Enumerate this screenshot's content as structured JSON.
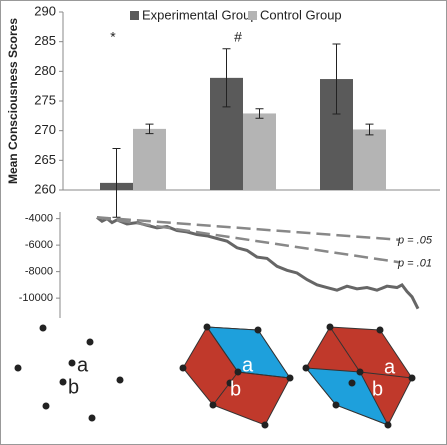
{
  "chart_data": [
    {
      "type": "bar",
      "ylabel": "Mean Consciousness Scores",
      "categories": [
        null,
        null,
        null
      ],
      "series": [
        {
          "name": "Experimental Group",
          "color": "#5a5a5a",
          "values": [
            261.2,
            278.9,
            278.7
          ],
          "errors": [
            5.8,
            4.9,
            5.9
          ]
        },
        {
          "name": "Control Group",
          "color": "#b4b4b4",
          "values": [
            270.3,
            272.9,
            270.2
          ],
          "errors": [
            0.8,
            0.8,
            0.9
          ]
        }
      ],
      "annotations": [
        "*",
        "#",
        null
      ],
      "ylim": [
        260,
        290
      ],
      "yticks": [
        260,
        265,
        270,
        275,
        280,
        285,
        290
      ]
    },
    {
      "type": "line",
      "series": [
        {
          "color": "#666666",
          "dashed": false,
          "x": [
            0,
            5,
            10,
            15,
            20,
            30,
            40,
            50,
            60,
            70,
            80,
            90,
            100,
            110,
            120,
            130,
            140,
            150,
            160,
            170,
            180,
            190,
            200,
            210,
            220,
            230,
            240,
            250,
            260,
            270,
            280,
            290,
            300,
            305,
            310,
            315,
            321
          ],
          "values": [
            -3900,
            -4200,
            -4000,
            -4300,
            -4100,
            -4400,
            -4300,
            -4500,
            -4700,
            -4600,
            -4900,
            -5000,
            -5200,
            -5300,
            -5500,
            -5700,
            -6200,
            -6400,
            -6900,
            -7000,
            -7600,
            -7900,
            -8100,
            -8600,
            -9000,
            -9200,
            -9400,
            -9100,
            -9300,
            -9200,
            -9400,
            -9100,
            -9200,
            -9000,
            -9500,
            -9900,
            -10800
          ]
        },
        {
          "name": "p = .05",
          "color": "#888888",
          "dashed": true,
          "x": [
            0,
            303
          ],
          "values": [
            -3900,
            -5600
          ]
        },
        {
          "name": "p = .01",
          "color": "#888888",
          "dashed": true,
          "x": [
            0,
            303
          ],
          "values": [
            -3900,
            -7300
          ]
        }
      ],
      "xlim": [
        0,
        325
      ],
      "ylim": [
        -11500,
        -3500
      ],
      "yticks": [
        -4000,
        -6000,
        -8000,
        -10000
      ]
    }
  ],
  "figures": [
    {
      "label_a": "a",
      "label_b": "b"
    },
    {
      "label_a": "a",
      "label_b": "b"
    },
    {
      "label_a": "a",
      "label_b": "b"
    }
  ]
}
